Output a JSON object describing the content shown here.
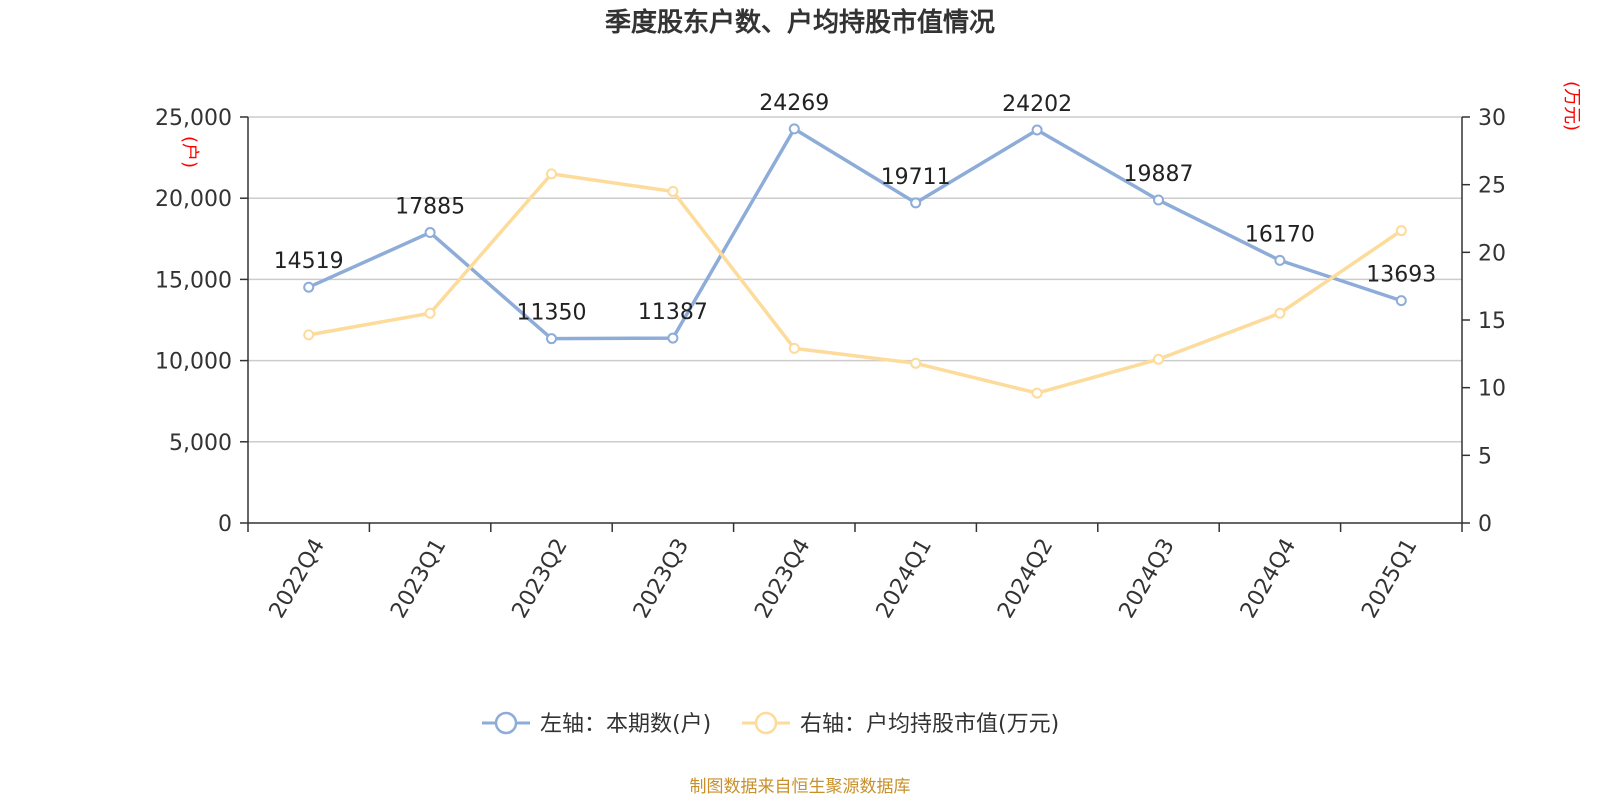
{
  "chart_data": {
    "type": "line",
    "title": "季度股东户数、户均持股市值情况",
    "categories": [
      "2022Q4",
      "2023Q1",
      "2023Q2",
      "2023Q3",
      "2023Q4",
      "2024Q1",
      "2024Q2",
      "2024Q3",
      "2024Q4",
      "2025Q1"
    ],
    "left_axis": {
      "unit": "(户)",
      "ylim": [
        0,
        25000
      ],
      "ticks": [
        "0",
        "5,000",
        "10,000",
        "15,000",
        "20,000",
        "25,000"
      ],
      "tick_values": [
        0,
        5000,
        10000,
        15000,
        20000,
        25000
      ]
    },
    "right_axis": {
      "unit": "(万元)",
      "ylim": [
        0,
        30
      ],
      "ticks": [
        "0",
        "5",
        "10",
        "15",
        "20",
        "25",
        "30"
      ],
      "tick_values": [
        0,
        5,
        10,
        15,
        20,
        25,
        30
      ]
    },
    "series": [
      {
        "name": "左轴：本期数(户)",
        "axis": "left",
        "color": "#8eacd8",
        "values": [
          14519,
          17885,
          11350,
          11387,
          24269,
          19711,
          24202,
          19887,
          16170,
          13693
        ],
        "labels": [
          "14519",
          "17885",
          "11350",
          "11387",
          "24269",
          "19711",
          "24202",
          "19887",
          "16170",
          "13693"
        ]
      },
      {
        "name": "右轴：户均持股市值(万元)",
        "axis": "right",
        "color": "#fddb9a",
        "values": [
          13.9,
          15.5,
          25.8,
          24.5,
          12.9,
          11.8,
          9.6,
          12.1,
          15.5,
          21.6
        ]
      }
    ],
    "grid": true,
    "legend": "bottom-center",
    "source": "制图数据来自恒生聚源数据库"
  }
}
